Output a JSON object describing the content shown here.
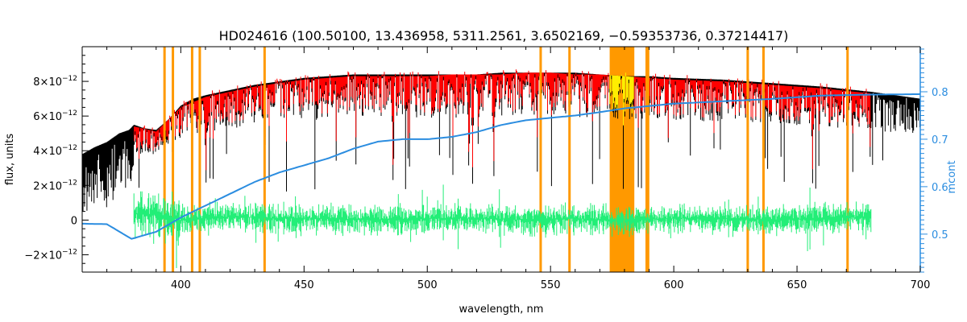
{
  "chart_data": {
    "type": "line",
    "title": "HD024616    (100.50100, 13.436958, 5311.2561, 3.6502169, −0.59353736, 0.37214417)",
    "xlabel": "wavelength, nm",
    "ylabel": "flux, units",
    "y2label": "mcont",
    "xlim": [
      360,
      700
    ],
    "ylim": [
      -3e-12,
      1e-11
    ],
    "y2lim": [
      0.42,
      0.895
    ],
    "x_ticks": [
      {
        "value": 400,
        "label": "400"
      },
      {
        "value": 450,
        "label": "450"
      },
      {
        "value": 500,
        "label": "500"
      },
      {
        "value": 550,
        "label": "550"
      },
      {
        "value": 600,
        "label": "600"
      },
      {
        "value": 650,
        "label": "650"
      },
      {
        "value": 700,
        "label": "700"
      }
    ],
    "y_ticks": [
      {
        "value": -2e-12,
        "label": "−2×10",
        "exp": "−12"
      },
      {
        "value": 0,
        "label": "0",
        "exp": ""
      },
      {
        "value": 2e-12,
        "label": "2×10",
        "exp": "−12"
      },
      {
        "value": 4e-12,
        "label": "4×10",
        "exp": "−12"
      },
      {
        "value": 6e-12,
        "label": "6×10",
        "exp": "−12"
      },
      {
        "value": 8e-12,
        "label": "8×10",
        "exp": "−12"
      }
    ],
    "y2_ticks": [
      {
        "value": 0.5,
        "label": "0.5"
      },
      {
        "value": 0.6,
        "label": "0.6"
      },
      {
        "value": 0.7,
        "label": "0.7"
      },
      {
        "value": 0.8,
        "label": "0.8"
      }
    ],
    "masked_lines_nm": [
      393.4,
      396.8,
      404.6,
      407.7,
      434.0,
      546.0,
      557.7,
      589.0,
      589.6,
      630.0,
      636.4,
      670.5
    ],
    "masked_band_nm": [
      574,
      584
    ],
    "series": [
      {
        "name": "",
        "color": "#000000",
        "kind": "observed flux (full)",
        "x": [
          360,
          365,
          370,
          375,
          379,
          381,
          385,
          390,
          395,
          400,
          405,
          410,
          420,
          430,
          440,
          450,
          460,
          470,
          480,
          490,
          500,
          510,
          520,
          530,
          540,
          550,
          560,
          570,
          580,
          590,
          600,
          620,
          640,
          660,
          680,
          690,
          700
        ],
        "y": [
          3.8e-12,
          4.2e-12,
          4.5e-12,
          5e-12,
          5.2e-12,
          5.5e-12,
          5.3e-12,
          5.2e-12,
          5.8e-12,
          6.6e-12,
          7e-12,
          7.2e-12,
          7.5e-12,
          7.8e-12,
          8e-12,
          8.2e-12,
          8.3e-12,
          8.4e-12,
          8.4e-12,
          8.4e-12,
          8.4e-12,
          8.4e-12,
          8.4e-12,
          8.5e-12,
          8.5e-12,
          8.5e-12,
          8.5e-12,
          8.4e-12,
          8.3e-12,
          8.3e-12,
          8.2e-12,
          8.1e-12,
          7.9e-12,
          7.7e-12,
          7.4e-12,
          7.2e-12,
          7e-12
        ]
      },
      {
        "name": "",
        "color": "#ff0000",
        "kind": "model fit",
        "x": [
          381,
          390,
          400,
          410,
          420,
          430,
          440,
          450,
          460,
          470,
          480,
          490,
          500,
          510,
          520,
          530,
          540,
          550,
          560,
          570,
          580,
          590,
          600,
          620,
          640,
          660,
          680
        ],
        "y": [
          5.4e-12,
          5.1e-12,
          6.5e-12,
          7.1e-12,
          7.4e-12,
          7.7e-12,
          7.9e-12,
          8.1e-12,
          8.2e-12,
          8.3e-12,
          8.3e-12,
          8.3e-12,
          8.3e-12,
          8.4e-12,
          8.4e-12,
          8.4e-12,
          8.5e-12,
          8.5e-12,
          8.4e-12,
          8.4e-12,
          8.3e-12,
          8.2e-12,
          8.1e-12,
          8e-12,
          7.8e-12,
          7.6e-12,
          7.3e-12
        ]
      },
      {
        "name": "",
        "color": "#2b8de0",
        "kind": "continuum mcont (right axis)",
        "axis": "right",
        "x": [
          360,
          370,
          380,
          390,
          400,
          410,
          420,
          430,
          440,
          450,
          460,
          470,
          480,
          490,
          500,
          510,
          520,
          530,
          540,
          550,
          560,
          570,
          580,
          590,
          600,
          620,
          640,
          660,
          680,
          700
        ],
        "y": [
          0.522,
          0.521,
          0.49,
          0.505,
          0.535,
          0.56,
          0.585,
          0.61,
          0.63,
          0.645,
          0.66,
          0.68,
          0.695,
          0.7,
          0.7,
          0.705,
          0.715,
          0.73,
          0.74,
          0.745,
          0.75,
          0.757,
          0.765,
          0.77,
          0.775,
          0.78,
          0.785,
          0.792,
          0.794,
          0.795
        ]
      },
      {
        "name": "",
        "color": "#22ee77",
        "kind": "residuals",
        "x": [
          381,
          390,
          400,
          420,
          440,
          460,
          480,
          500,
          520,
          540,
          560,
          575,
          585,
          600,
          620,
          640,
          660,
          670,
          680
        ],
        "y": [
          4e-13,
          3e-13,
          0,
          2e-13,
          1e-13,
          1e-13,
          0,
          1e-13,
          1e-13,
          0,
          1e-13,
          0,
          0,
          1e-13,
          1e-13,
          0,
          1e-13,
          2e-13,
          1e-13
        ]
      }
    ]
  }
}
